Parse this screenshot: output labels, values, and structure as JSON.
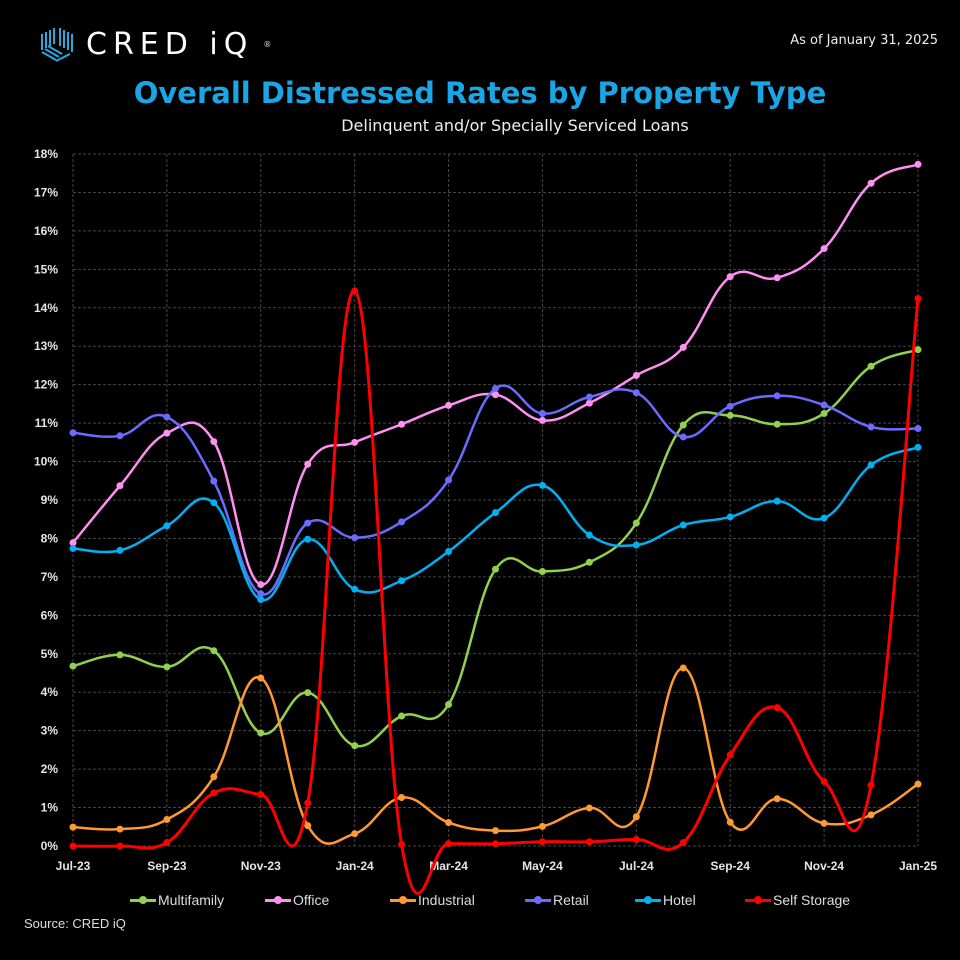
{
  "header": {
    "logo_text": "CRED iQ",
    "logo_reg": "®",
    "as_of": "As of January 31, 2025",
    "title": "Overall Distressed Rates by Property Type",
    "subtitle": "Delinquent and/or Specially Serviced Loans"
  },
  "footer": {
    "source": "Source:  CRED iQ"
  },
  "chart_data": {
    "type": "line",
    "title": "Overall Distressed Rates by Property Type",
    "subtitle": "Delinquent and/or Specially Serviced Loans",
    "xlabel": "",
    "ylabel": "",
    "ylim": [
      0,
      18
    ],
    "y_unit": "%",
    "y_ticks": [
      "0%",
      "1%",
      "2%",
      "3%",
      "4%",
      "5%",
      "6%",
      "7%",
      "8%",
      "9%",
      "10%",
      "11%",
      "12%",
      "13%",
      "14%",
      "15%",
      "16%",
      "17%",
      "18%"
    ],
    "x": [
      "Jul-23",
      "Aug-23",
      "Sep-23",
      "Oct-23",
      "Nov-23",
      "Dec-23",
      "Jan-24",
      "Feb-24",
      "Mar-24",
      "Apr-24",
      "May-24",
      "Jun-24",
      "Jul-24",
      "Aug-24",
      "Sep-24",
      "Oct-24",
      "Nov-24",
      "Dec-24",
      "Jan-25"
    ],
    "x_tick_labels": [
      "Jul-23",
      "Sep-23",
      "Nov-23",
      "Jan-24",
      "Mar-24",
      "May-24",
      "Jul-24",
      "Sep-24",
      "Nov-24",
      "Jan-25"
    ],
    "grid": true,
    "legend_position": "bottom",
    "smooth": true,
    "series": [
      {
        "name": "Multifamily",
        "color": "#92d050",
        "values": [
          4.68,
          4.97,
          4.66,
          5.08,
          2.94,
          3.99,
          2.61,
          3.38,
          3.68,
          7.2,
          7.14,
          7.38,
          8.4,
          10.95,
          11.2,
          10.97,
          11.25,
          12.48,
          12.91
        ]
      },
      {
        "name": "Office",
        "color": "#ff8ff0",
        "values": [
          7.89,
          9.37,
          10.74,
          10.52,
          6.8,
          9.93,
          10.5,
          10.97,
          11.46,
          11.74,
          11.07,
          11.52,
          12.24,
          12.97,
          14.81,
          14.78,
          15.54,
          17.24,
          17.73
        ]
      },
      {
        "name": "Industrial",
        "color": "#ff9933",
        "values": [
          0.49,
          0.44,
          0.69,
          1.8,
          4.37,
          0.53,
          0.32,
          1.26,
          0.61,
          0.4,
          0.51,
          0.99,
          0.76,
          4.63,
          0.62,
          1.23,
          0.59,
          0.81,
          1.61
        ]
      },
      {
        "name": "Retail",
        "color": "#6b6bff",
        "values": [
          10.75,
          10.67,
          11.16,
          9.49,
          6.56,
          8.4,
          8.02,
          8.43,
          9.52,
          11.9,
          11.25,
          11.68,
          11.79,
          10.64,
          11.44,
          11.71,
          11.47,
          10.9,
          10.86
        ]
      },
      {
        "name": "Hotel",
        "color": "#00b0f0",
        "values": [
          7.74,
          7.69,
          8.33,
          8.93,
          6.41,
          7.98,
          6.68,
          6.9,
          7.66,
          8.67,
          9.38,
          8.09,
          7.83,
          8.35,
          8.56,
          8.97,
          8.53,
          9.91,
          10.37
        ]
      },
      {
        "name": "Self Storage",
        "color": "#ff0000",
        "values": [
          0.0,
          0.0,
          0.09,
          1.38,
          1.34,
          1.12,
          14.44,
          0.04,
          0.06,
          0.06,
          0.11,
          0.11,
          0.17,
          0.09,
          2.37,
          3.6,
          1.68,
          1.58,
          14.24
        ]
      }
    ]
  }
}
